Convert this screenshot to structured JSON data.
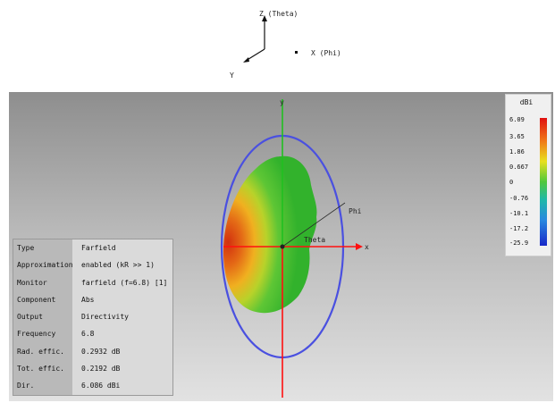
{
  "colors": {
    "viewport_top": "#8e8e8e",
    "viewport_bottom": "#e2e2e2",
    "ellipse": "#4a50e0",
    "axis_x": "#ff1010",
    "axis_y": "#20c020",
    "pattern_green": "#3dbf2e",
    "pattern_orange": "#e07a18",
    "pattern_red": "#d43a12"
  },
  "axes_widget": {
    "z_label": "Z (Theta)",
    "x_label": "X (Phi)",
    "y_label": "Y"
  },
  "scene": {
    "y_axis_label": "y",
    "x_axis_label": "x",
    "phi_label": "Phi",
    "theta_label": "Theta"
  },
  "info_panel": {
    "rows": [
      {
        "key": "Type",
        "value": "Farfield"
      },
      {
        "key": "Approximation",
        "value": "enabled (kR >> 1)"
      },
      {
        "key": "Monitor",
        "value": "farfield (f=6.8) [1]"
      },
      {
        "key": "Component",
        "value": "Abs"
      },
      {
        "key": "Output",
        "value": "Directivity"
      },
      {
        "key": "Frequency",
        "value": "6.8"
      },
      {
        "key": "Rad. effic.",
        "value": "0.2932 dB"
      },
      {
        "key": "Tot. effic.",
        "value": "0.2192 dB"
      },
      {
        "key": "Dir.",
        "value": "6.086 dBi"
      }
    ]
  },
  "legend": {
    "unit": "dBi",
    "ticks": [
      "6.09",
      "3.65",
      "1.86",
      "0.667",
      "0",
      "-0.76",
      "-10.1",
      "-17.2",
      "-25.9"
    ]
  }
}
